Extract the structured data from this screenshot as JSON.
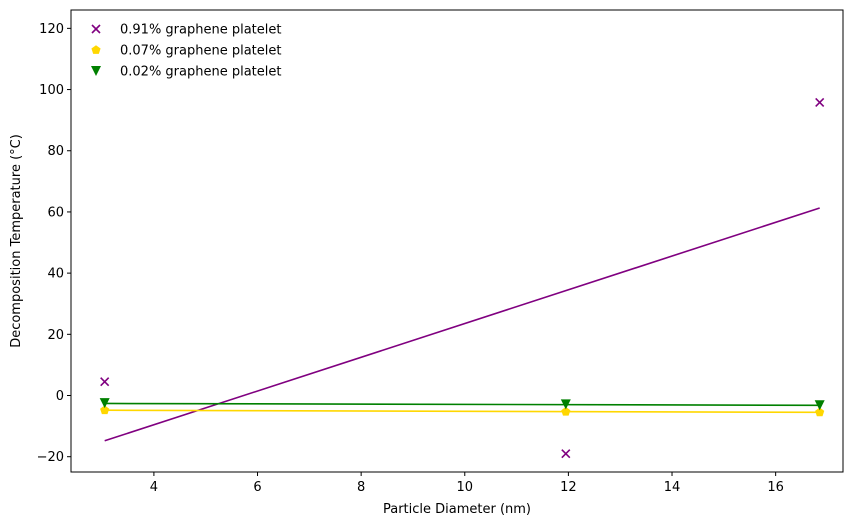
{
  "chart_data": {
    "type": "scatter",
    "xlabel": "Particle Diameter (nm)",
    "ylabel": "Decomposition Temperature (°C)",
    "xlim": [
      2.4,
      17.3
    ],
    "ylim": [
      -25,
      126
    ],
    "xticks": [
      4,
      6,
      8,
      10,
      12,
      14,
      16
    ],
    "yticks": [
      -20,
      0,
      20,
      40,
      60,
      80,
      100,
      120
    ],
    "grid": false,
    "legend_position": "top-left",
    "series": [
      {
        "name": "0.91% graphene platelet",
        "color": "#800080",
        "marker": "x",
        "x": [
          3.05,
          11.95,
          16.85
        ],
        "y": [
          4.5,
          -19.0,
          95.8
        ],
        "fit": {
          "x": [
            3.05,
            16.85
          ],
          "y": [
            -14.8,
            61.3
          ]
        }
      },
      {
        "name": "0.07% graphene platelet",
        "color": "#ffd700",
        "marker": "pentagon",
        "x": [
          3.05,
          11.95,
          16.85
        ],
        "y": [
          -4.8,
          -5.3,
          -5.5
        ],
        "fit": {
          "x": [
            3.05,
            16.85
          ],
          "y": [
            -4.8,
            -5.5
          ]
        }
      },
      {
        "name": "0.02% graphene platelet",
        "color": "#008000",
        "marker": "triangle-down",
        "x": [
          3.05,
          11.95,
          16.85
        ],
        "y": [
          -2.5,
          -2.9,
          -3.2
        ],
        "fit": {
          "x": [
            3.05,
            16.85
          ],
          "y": [
            -2.6,
            -3.2
          ]
        }
      }
    ]
  }
}
